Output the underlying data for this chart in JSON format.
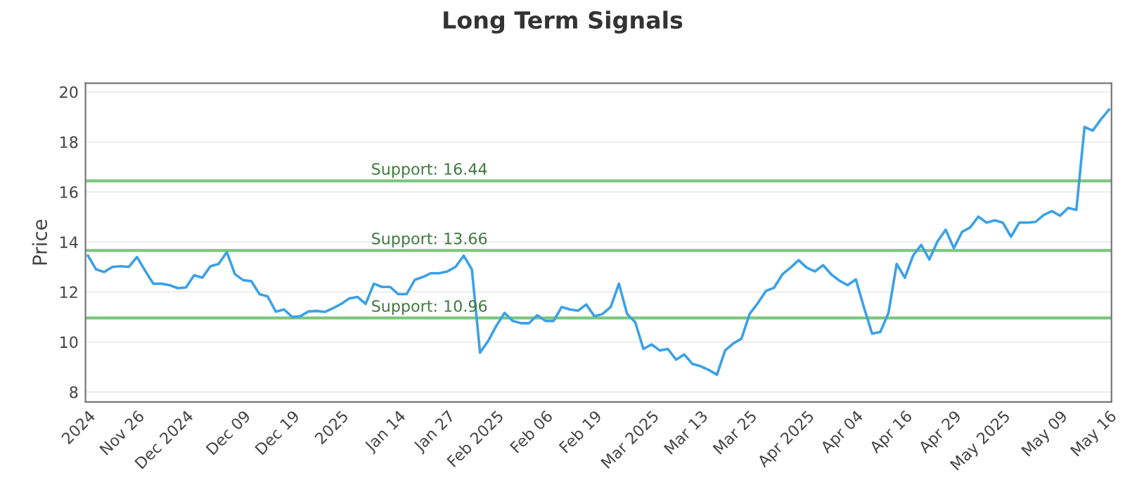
{
  "chart_data": {
    "type": "line",
    "title": "Long Term Signals",
    "ylabel": "Price",
    "categories": [
      "2024",
      null,
      null,
      null,
      null,
      null,
      "Nov 26",
      null,
      null,
      null,
      null,
      null,
      "Dec 2024",
      null,
      null,
      null,
      null,
      null,
      null,
      "Dec 09",
      null,
      null,
      null,
      null,
      null,
      "Dec 19",
      null,
      null,
      null,
      null,
      null,
      "2025",
      null,
      null,
      null,
      null,
      null,
      null,
      "Jan 14",
      null,
      null,
      null,
      null,
      null,
      "Jan 27",
      null,
      null,
      null,
      null,
      null,
      "Feb 2025",
      null,
      null,
      null,
      null,
      null,
      "Feb 06",
      null,
      null,
      null,
      null,
      null,
      "Feb 19",
      null,
      null,
      null,
      null,
      null,
      null,
      "Mar 2025",
      null,
      null,
      null,
      null,
      null,
      "Mar 13",
      null,
      null,
      null,
      null,
      null,
      "Mar 25",
      null,
      null,
      null,
      null,
      null,
      null,
      "Apr 2025",
      null,
      null,
      null,
      null,
      null,
      "Apr 04",
      null,
      null,
      null,
      null,
      null,
      "Apr 16",
      null,
      null,
      null,
      null,
      null,
      "Apr 29",
      null,
      null,
      null,
      null,
      null,
      "May 2025",
      null,
      null,
      null,
      null,
      null,
      null,
      "May 09",
      null,
      null,
      null,
      null,
      null,
      "May 16"
    ],
    "series": [
      {
        "color": "#3ba1e6",
        "values": [
          13.45,
          12.9,
          12.8,
          13.0,
          13.03,
          13.0,
          13.4,
          12.85,
          12.33,
          12.33,
          12.27,
          12.15,
          12.18,
          12.67,
          12.57,
          13.03,
          13.12,
          13.59,
          12.71,
          12.47,
          12.43,
          11.91,
          11.82,
          11.21,
          11.3,
          11.0,
          11.03,
          11.22,
          11.24,
          11.2,
          11.35,
          11.52,
          11.74,
          11.8,
          11.52,
          12.33,
          12.2,
          12.2,
          11.91,
          11.91,
          12.48,
          12.6,
          12.75,
          12.75,
          12.82,
          13.0,
          13.45,
          12.9,
          9.57,
          10.04,
          10.65,
          11.16,
          10.84,
          10.75,
          10.75,
          11.07,
          10.84,
          10.84,
          11.4,
          11.3,
          11.25,
          11.5,
          11.03,
          11.12,
          11.4,
          12.33,
          11.12,
          10.79,
          9.72,
          9.9,
          9.66,
          9.72,
          9.29,
          9.5,
          9.12,
          9.03,
          8.88,
          8.69,
          9.66,
          9.94,
          10.13,
          11.12,
          11.55,
          12.04,
          12.17,
          12.7,
          12.97,
          13.27,
          12.97,
          12.82,
          13.07,
          12.7,
          12.45,
          12.27,
          12.5,
          11.38,
          10.33,
          10.4,
          11.16,
          13.12,
          12.57,
          13.45,
          13.88,
          13.3,
          14.02,
          14.49,
          13.75,
          14.4,
          14.58,
          15.01,
          14.77,
          14.86,
          14.77,
          14.21,
          14.77,
          14.77,
          14.8,
          15.08,
          15.23,
          15.05,
          15.36,
          15.28,
          18.6,
          18.45,
          18.9,
          19.29
        ]
      }
    ],
    "ylim": [
      7.6,
      20.35
    ],
    "yticks": [
      8,
      10,
      12,
      14,
      16,
      18,
      20
    ],
    "grid": "y",
    "marker": "none",
    "line_style": "solid",
    "ref_lines": [
      {
        "axis": "y",
        "value": 16.44,
        "label": "Support: 16.44",
        "color": "#7dc67d"
      },
      {
        "axis": "y",
        "value": 13.66,
        "label": "Support: 13.66",
        "color": "#7dc67d"
      },
      {
        "axis": "y",
        "value": 10.96,
        "label": "Support: 10.96",
        "color": "#7dc67d"
      }
    ]
  }
}
